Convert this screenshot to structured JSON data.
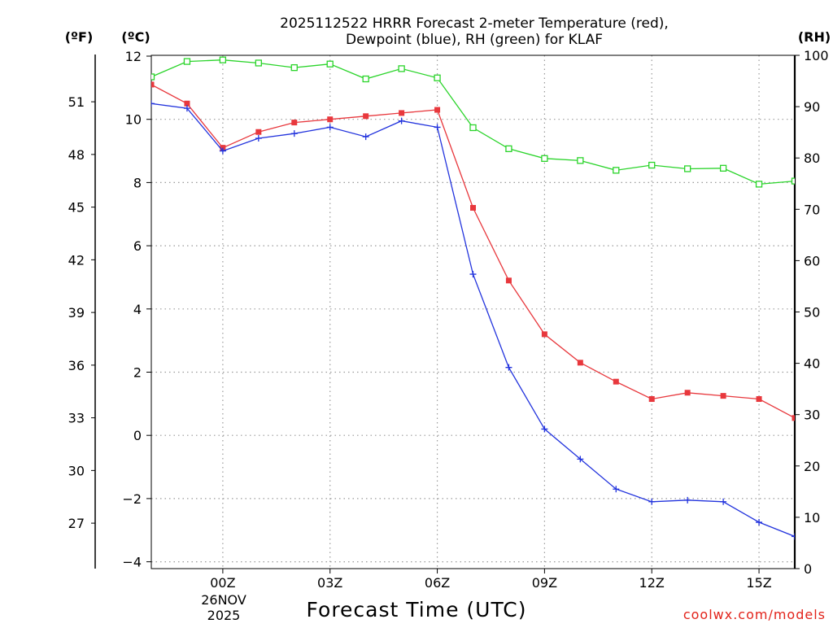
{
  "chart_data": {
    "type": "line",
    "title_line1": "2025112522 HRRR Forecast 2-meter Temperature (red),",
    "title_line2": "Dewpoint (blue), RH (green) for KLAF",
    "xlabel": "Forecast Time (UTC)",
    "date_day": "26NOV",
    "date_year": "2025",
    "credit": "coolwx.com/models",
    "units": {
      "fahrenheit": "(ºF)",
      "celsius": "(ºC)",
      "rh": "(RH)"
    },
    "x_hours": [
      -2,
      -1,
      0,
      1,
      2,
      3,
      4,
      5,
      6,
      7,
      8,
      9,
      10,
      11,
      12,
      13,
      14,
      15,
      16
    ],
    "x_ticks": [
      {
        "hour": 0,
        "label": "00Z"
      },
      {
        "hour": 3,
        "label": "03Z"
      },
      {
        "hour": 6,
        "label": "06Z"
      },
      {
        "hour": 9,
        "label": "09Z"
      },
      {
        "hour": 12,
        "label": "12Z"
      },
      {
        "hour": 15,
        "label": "15Z"
      }
    ],
    "celsius_ticks": [
      "12",
      "10",
      "8",
      "6",
      "4",
      "2",
      "0",
      "−2",
      "−4"
    ],
    "celsius_values": [
      12,
      10,
      8,
      6,
      4,
      2,
      0,
      -2,
      -4
    ],
    "fahrenheit_ticks": [
      "51",
      "48",
      "45",
      "42",
      "39",
      "36",
      "33",
      "30",
      "27"
    ],
    "fahrenheit_values": [
      51,
      48,
      45,
      42,
      39,
      36,
      33,
      30,
      27
    ],
    "rh_ticks": [
      "100",
      "90",
      "80",
      "70",
      "60",
      "50",
      "40",
      "30",
      "20",
      "10",
      "0"
    ],
    "rh_values": [
      100,
      90,
      80,
      70,
      60,
      50,
      40,
      30,
      20,
      10,
      0
    ],
    "ylim_celsius": [
      -4.2,
      12.0
    ],
    "ylim_rh": [
      0,
      100
    ],
    "series": [
      {
        "name": "Temperature",
        "axis": "celsius",
        "color": "#e8383d",
        "marker": "filled-square",
        "values": [
          11.1,
          10.5,
          9.1,
          9.6,
          9.9,
          10.0,
          10.1,
          10.2,
          10.3,
          7.2,
          4.9,
          3.2,
          2.3,
          1.7,
          1.15,
          1.35,
          1.25,
          1.15,
          0.55
        ]
      },
      {
        "name": "Dewpoint",
        "axis": "celsius",
        "color": "#2233dd",
        "marker": "plus",
        "values": [
          10.5,
          10.35,
          9.0,
          9.4,
          9.55,
          9.75,
          9.45,
          9.95,
          9.75,
          5.1,
          2.15,
          0.2,
          -0.75,
          -1.7,
          -2.1,
          -2.05,
          -2.1,
          -2.75,
          -3.2
        ]
      },
      {
        "name": "RH",
        "axis": "rh",
        "color": "#2ad42a",
        "marker": "open-square",
        "values": [
          95.8,
          98.8,
          99.1,
          98.5,
          97.6,
          98.3,
          95.4,
          97.4,
          95.6,
          85.9,
          81.8,
          79.9,
          79.5,
          77.6,
          78.6,
          77.9,
          78.0,
          74.9,
          75.5
        ]
      }
    ]
  }
}
